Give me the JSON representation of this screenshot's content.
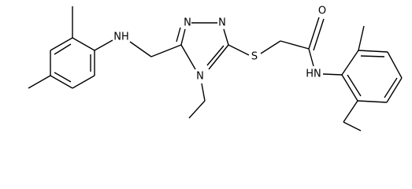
{
  "atoms": {
    "amine": "NH",
    "triazole_n1": "N",
    "triazole_n2": "N",
    "triazole_n4": "N",
    "sulfur": "S",
    "oxygen": "O",
    "amide": "HN"
  }
}
